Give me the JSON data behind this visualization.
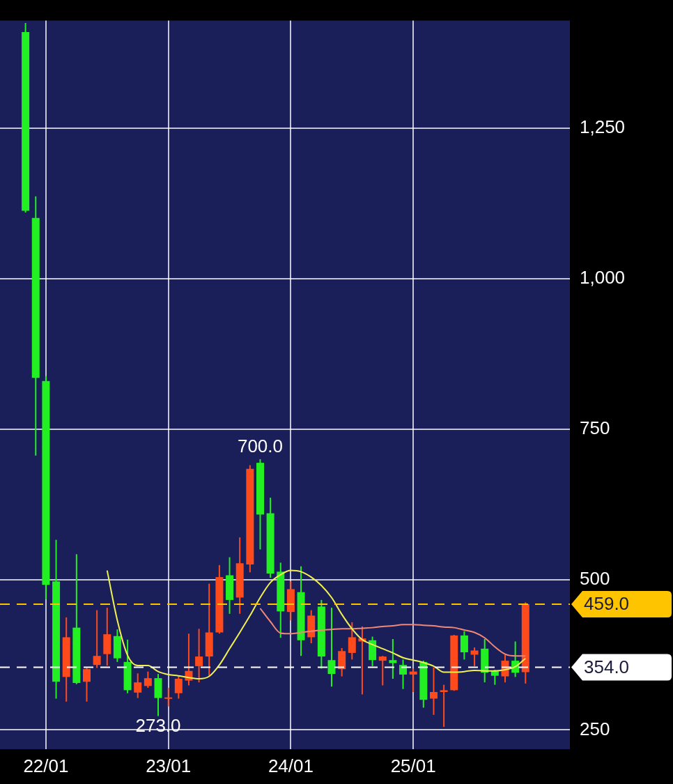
{
  "chart_data": {
    "type": "candlestick",
    "x": [
      "--01-21T20:00",
      "--01-21T22:00",
      "--01-22T00:00",
      "--01-22T02:00",
      "--01-22T04:00",
      "--01-22T06:00",
      "--01-22T08:00",
      "--01-22T10:00",
      "--01-22T12:00",
      "--01-22T14:00",
      "--01-22T16:00",
      "--01-22T18:00",
      "--01-22T20:00",
      "--01-22T22:00",
      "--01-23T00:00",
      "--01-23T02:00",
      "--01-23T04:00",
      "--01-23T06:00",
      "--01-23T08:00",
      "--01-23T10:00",
      "--01-23T12:00",
      "--01-23T14:00",
      "--01-23T16:00",
      "--01-23T18:00",
      "--01-23T20:00",
      "--01-23T22:00",
      "--01-24T00:00",
      "--01-24T02:00",
      "--01-24T04:00",
      "--01-24T06:00",
      "--01-24T08:00",
      "--01-24T10:00",
      "--01-24T12:00",
      "--01-24T14:00",
      "--01-24T16:00",
      "--01-24T18:00",
      "--01-24T20:00",
      "--01-24T22:00",
      "--01-25T00:00",
      "--01-25T02:00",
      "--01-25T04:00",
      "--01-25T06:00",
      "--01-25T08:00",
      "--01-25T10:00",
      "--01-25T12:00",
      "--01-25T14:00",
      "--01-25T16:00",
      "--01-25T18:00",
      "--01-25T20:00",
      "--01-25T22:00"
    ],
    "ohlc": [
      [
        1410,
        1425,
        1110,
        1113
      ],
      [
        1101,
        1137,
        706,
        835
      ],
      [
        830,
        838,
        467,
        491
      ],
      [
        497,
        566,
        302,
        330
      ],
      [
        338,
        437,
        297,
        404
      ],
      [
        420,
        542,
        326,
        328
      ],
      [
        330,
        353,
        297,
        351
      ],
      [
        358,
        449,
        353,
        373
      ],
      [
        376,
        453,
        357,
        409
      ],
      [
        406,
        417,
        363,
        369
      ],
      [
        363,
        400,
        311,
        316
      ],
      [
        312,
        344,
        303,
        329
      ],
      [
        323,
        347,
        320,
        336
      ],
      [
        336,
        343,
        273,
        303
      ],
      [
        302,
        320,
        289,
        304
      ],
      [
        311,
        339,
        302,
        335
      ],
      [
        332,
        410,
        324,
        348
      ],
      [
        356,
        418,
        329,
        372
      ],
      [
        372,
        493,
        340,
        412
      ],
      [
        412,
        524,
        410,
        504
      ],
      [
        507,
        537,
        443,
        466
      ],
      [
        470,
        570,
        443,
        527
      ],
      [
        525,
        690,
        512,
        684
      ],
      [
        694,
        700,
        550,
        608
      ],
      [
        610,
        636,
        503,
        510
      ],
      [
        513,
        528,
        403,
        447
      ],
      [
        446,
        497,
        432,
        484
      ],
      [
        479,
        522,
        373,
        399
      ],
      [
        404,
        449,
        394,
        440
      ],
      [
        455,
        466,
        352,
        372
      ],
      [
        366,
        453,
        322,
        343
      ],
      [
        351,
        386,
        339,
        381
      ],
      [
        378,
        429,
        367,
        404
      ],
      [
        397,
        422,
        309,
        402
      ],
      [
        399,
        405,
        356,
        366
      ],
      [
        365,
        373,
        324,
        372
      ],
      [
        366,
        401,
        335,
        361
      ],
      [
        358,
        367,
        318,
        342
      ],
      [
        342,
        352,
        313,
        347
      ],
      [
        363,
        365,
        287,
        300
      ],
      [
        302,
        354,
        275,
        313
      ],
      [
        313,
        325,
        255,
        316
      ],
      [
        316,
        408,
        315,
        407
      ],
      [
        407,
        414,
        367,
        379
      ],
      [
        375,
        387,
        356,
        382
      ],
      [
        385,
        401,
        329,
        345
      ],
      [
        348,
        350,
        325,
        340
      ],
      [
        339,
        375,
        329,
        365
      ],
      [
        365,
        397,
        338,
        345
      ],
      [
        346,
        462,
        327,
        459
      ]
    ],
    "colors": [
      "#22f022",
      "#22f022",
      "#22f022",
      "#22f022",
      "#ff4a1c",
      "#22f022",
      "#ff4a1c",
      "#ff4a1c",
      "#ff4a1c",
      "#22f022",
      "#22f022",
      "#ff4a1c",
      "#ff4a1c",
      "#22f022",
      "#ff4a1c",
      "#ff4a1c",
      "#ff4a1c",
      "#ff4a1c",
      "#ff4a1c",
      "#ff4a1c",
      "#22f022",
      "#ff4a1c",
      "#ff4a1c",
      "#22f022",
      "#22f022",
      "#22f022",
      "#ff4a1c",
      "#22f022",
      "#ff4a1c",
      "#22f022",
      "#22f022",
      "#ff4a1c",
      "#ff4a1c",
      "#ff4a1c",
      "#22f022",
      "#ff4a1c",
      "#22f022",
      "#22f022",
      "#ff4a1c",
      "#22f022",
      "#ff4a1c",
      "#ff4a1c",
      "#ff4a1c",
      "#22f022",
      "#ff4a1c",
      "#22f022",
      "#22f022",
      "#ff4a1c",
      "#22f022",
      "#ff4a1c"
    ],
    "series": [
      {
        "type": "line",
        "color": "#f0f050",
        "x": [
          "--01-22T12:00",
          "--01-22T14:00",
          "--01-22T16:00",
          "--01-22T18:00",
          "--01-22T20:00",
          "--01-22T22:00",
          "--01-23T00:00",
          "--01-23T02:00",
          "--01-23T04:00",
          "--01-23T06:00",
          "--01-23T08:00",
          "--01-23T10:00",
          "--01-23T12:00",
          "--01-23T14:00",
          "--01-23T16:00",
          "--01-23T18:00",
          "--01-23T20:00",
          "--01-23T22:00",
          "--01-24T00:00",
          "--01-24T02:00",
          "--01-24T04:00",
          "--01-24T06:00",
          "--01-24T08:00",
          "--01-24T10:00",
          "--01-24T12:00",
          "--01-24T14:00",
          "--01-24T16:00",
          "--01-24T18:00",
          "--01-24T20:00",
          "--01-24T22:00",
          "--01-25T00:00",
          "--01-25T02:00",
          "--01-25T04:00",
          "--01-25T06:00",
          "--01-25T08:00",
          "--01-25T10:00",
          "--01-25T12:00",
          "--01-25T14:00",
          "--01-25T16:00",
          "--01-25T18:00",
          "--01-25T20:00",
          "--01-25T22:00"
        ],
        "values": [
          515,
          432,
          374,
          357,
          357,
          347,
          342,
          340,
          337,
          335,
          339,
          358,
          385,
          412,
          440,
          470,
          495,
          508,
          515,
          513,
          504,
          490,
          470,
          442,
          418,
          400,
          392,
          385,
          378,
          370,
          366,
          362,
          356,
          346,
          346,
          347,
          349,
          348,
          348,
          350,
          355,
          369
        ]
      },
      {
        "type": "line",
        "color": "#f08878",
        "x": [
          "--01-23T18:00",
          "--01-23T20:00",
          "--01-23T22:00",
          "--01-24T00:00",
          "--01-24T02:00",
          "--01-24T04:00",
          "--01-24T06:00",
          "--01-24T08:00",
          "--01-24T10:00",
          "--01-24T12:00",
          "--01-24T14:00",
          "--01-24T16:00",
          "--01-24T18:00",
          "--01-24T20:00",
          "--01-24T22:00",
          "--01-25T00:00",
          "--01-25T02:00",
          "--01-25T04:00",
          "--01-25T06:00",
          "--01-25T08:00",
          "--01-25T10:00",
          "--01-25T12:00",
          "--01-25T14:00",
          "--01-25T16:00",
          "--01-25T18:00",
          "--01-25T20:00",
          "--01-25T22:00"
        ],
        "values": [
          452,
          430,
          411,
          410,
          412,
          414,
          416,
          417,
          418,
          418,
          419,
          420,
          422,
          423,
          425,
          425,
          424,
          423,
          421,
          420,
          416,
          412,
          403,
          388,
          376,
          373,
          373
        ]
      }
    ],
    "xlim": [
      "--01-21T15:00",
      "--01-26T06:42"
    ],
    "xticks": [
      {
        "value": "--01-22",
        "label": "22/01"
      },
      {
        "value": "--01-23",
        "label": "23/01"
      },
      {
        "value": "--01-24",
        "label": "24/01"
      },
      {
        "value": "--01-25",
        "label": "25/01"
      }
    ],
    "ylim": [
      218,
      1429
    ],
    "yticks": [
      250,
      500,
      750,
      {
        "value": 1000,
        "label": "1,000"
      },
      {
        "value": 1250,
        "label": "1,250"
      }
    ],
    "grid": true,
    "ref_lines": [
      {
        "axis": "y",
        "value": 459,
        "label": "459.0",
        "color": "#ffc400",
        "line_style": "dashed"
      },
      {
        "axis": "y",
        "value": 354,
        "label": "354.0",
        "color": "#ffffff",
        "line_style": "dashed"
      }
    ],
    "annotations": [
      {
        "text": "700.0",
        "x": "--01-23T18:00",
        "y": 700
      },
      {
        "text": "273.0",
        "x": "--01-22T22:00",
        "y": 273
      }
    ]
  }
}
